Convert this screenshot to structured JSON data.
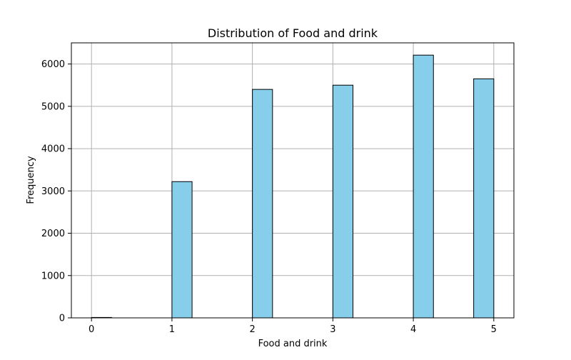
{
  "chart_data": {
    "type": "bar",
    "title": "Distribution of Food and drink",
    "xlabel": "Food and drink",
    "ylabel": "Frequency",
    "x_ticks": [
      0,
      1,
      2,
      3,
      4,
      5
    ],
    "y_ticks": [
      0,
      1000,
      2000,
      3000,
      4000,
      5000,
      6000
    ],
    "xlim": [
      -0.25,
      5.25
    ],
    "ylim": [
      0,
      6500
    ],
    "grid": true,
    "bar_color": "#87CEEB",
    "edge_color": "#000000",
    "bins": [
      {
        "start": 0,
        "end": 0.25,
        "value": 10
      },
      {
        "start": 1,
        "end": 1.25,
        "value": 3220
      },
      {
        "start": 2,
        "end": 2.25,
        "value": 5400
      },
      {
        "start": 3,
        "end": 3.25,
        "value": 5500
      },
      {
        "start": 4,
        "end": 4.25,
        "value": 6210
      },
      {
        "start": 4.75,
        "end": 5,
        "value": 5650
      }
    ]
  }
}
